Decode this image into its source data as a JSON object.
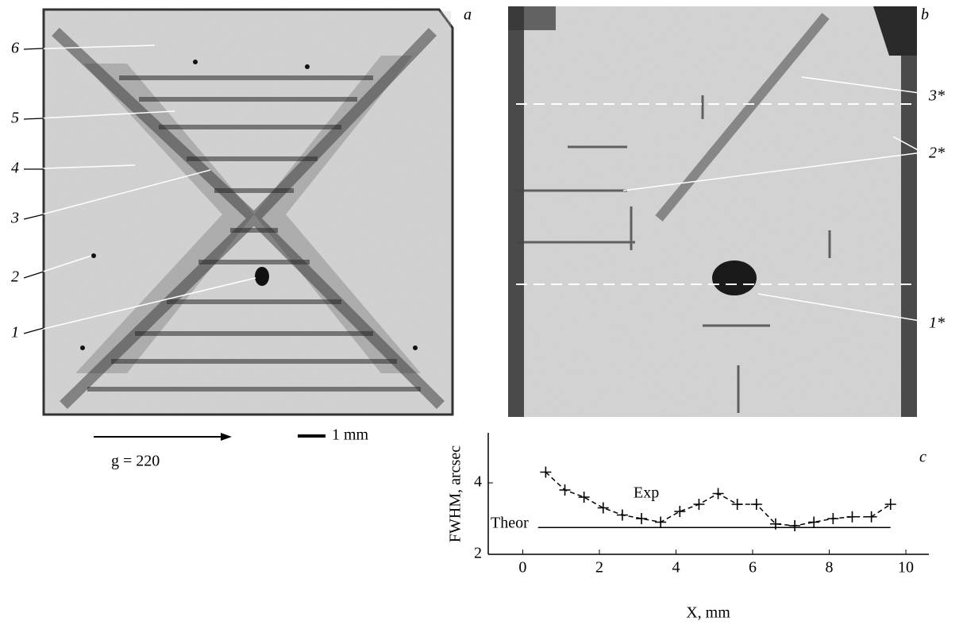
{
  "panel_a": {
    "letter": "a",
    "labels": [
      "6",
      "5",
      "4",
      "3",
      "2",
      "1"
    ],
    "scale_bar": "1 mm",
    "vector": "g = 220"
  },
  "panel_b": {
    "letter": "b",
    "labels": [
      "3*",
      "2*",
      "1*"
    ]
  },
  "chart_data": {
    "type": "line",
    "panel_letter": "c",
    "xlabel": "X, mm",
    "ylabel": "FWHM, arcsec",
    "xlim": [
      -0.9,
      10.6
    ],
    "ylim": [
      2,
      5.4
    ],
    "xticks": [
      0,
      2,
      4,
      6,
      8,
      10
    ],
    "yticks": [
      2,
      4
    ],
    "series": [
      {
        "name": "Exp",
        "color": "#000000",
        "x": [
          0.6,
          1.1,
          1.6,
          2.1,
          2.6,
          3.1,
          3.6,
          4.1,
          4.6,
          5.1,
          5.6,
          6.1,
          6.6,
          7.1,
          7.6,
          8.1,
          8.6,
          9.1,
          9.6
        ],
        "values": [
          4.3,
          3.8,
          3.6,
          3.3,
          3.1,
          3.0,
          2.9,
          3.2,
          3.4,
          3.7,
          3.4,
          3.4,
          2.85,
          2.8,
          2.9,
          3.0,
          3.05,
          3.05,
          3.4
        ]
      },
      {
        "name": "Theor",
        "color": "#000000",
        "x": [
          0.4,
          9.6
        ],
        "values": [
          2.75,
          2.75
        ]
      }
    ]
  }
}
